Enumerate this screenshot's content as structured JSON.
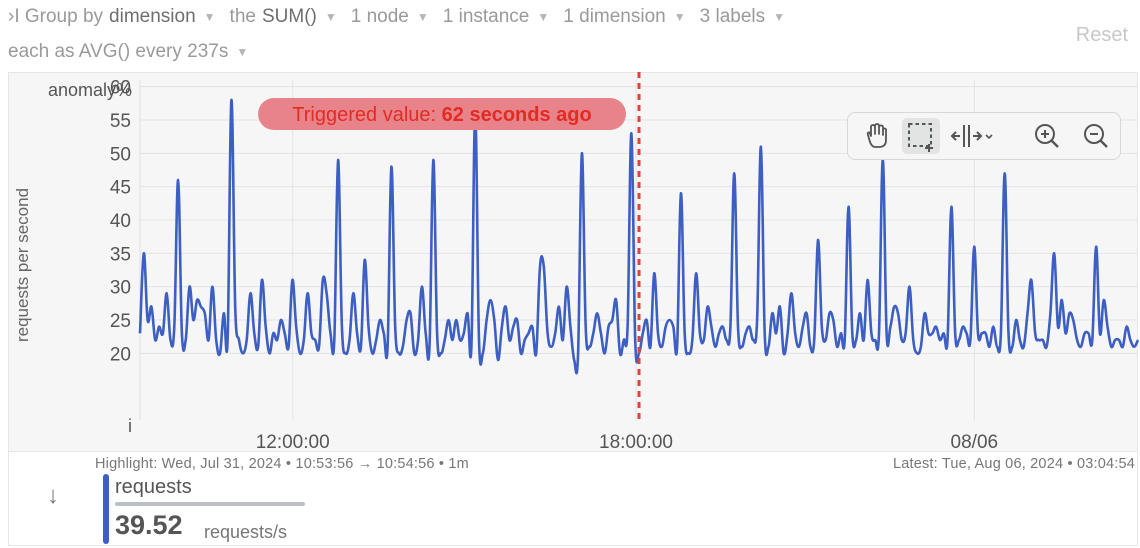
{
  "toolbar": {
    "row1": [
      {
        "label": "›I Group by",
        "highlight": "dimension"
      },
      {
        "label": "the",
        "highlight": "SUM()"
      },
      {
        "label": "1 node",
        "highlight": ""
      },
      {
        "label": "1 instance",
        "highlight": ""
      },
      {
        "label": "1 dimension",
        "highlight": ""
      },
      {
        "label": "3 labels",
        "highlight": ""
      }
    ],
    "row2": [
      {
        "label": "each as AVG() every 237s",
        "highlight": ""
      }
    ],
    "reset_label": "Reset"
  },
  "tools": {
    "items": [
      "pan-icon",
      "select-icon",
      "fit-icon",
      "zoom-in-icon",
      "zoom-out-icon"
    ],
    "active": "select-icon"
  },
  "chart_data": {
    "type": "line",
    "ylabel": "requests per second",
    "y2label": "anomaly%",
    "y_ticks": [
      20,
      25,
      30,
      35,
      40,
      45,
      50,
      55,
      60
    ],
    "ylim": [
      10,
      61
    ],
    "xlim": [
      0,
      1
    ],
    "x_ticks": [
      {
        "label": "12:00:00",
        "pos": 0.153
      },
      {
        "label": "18:00:00",
        "pos": 0.497
      },
      {
        "label": "08/06",
        "pos": 0.836
      }
    ],
    "anomaly_tick": "i",
    "marker": {
      "pos": 0.5,
      "label_prefix": "Triggered value:",
      "label_value": "62 seconds ago"
    },
    "series": [
      {
        "name": "requests",
        "color": "#3d5fc4",
        "values": [
          23,
          35,
          25,
          27,
          22,
          24,
          23,
          29,
          22,
          24,
          46,
          23,
          22,
          30,
          25,
          28,
          27,
          26,
          22,
          30,
          22,
          20,
          26,
          22,
          58,
          27,
          22,
          20,
          22,
          29,
          23,
          21,
          31,
          24,
          20,
          23,
          22,
          25,
          23,
          21,
          31,
          24,
          20,
          22,
          29,
          23,
          22,
          21,
          31,
          29,
          23,
          22,
          49,
          24,
          20,
          22,
          29,
          23,
          21,
          34,
          24,
          20,
          22,
          25,
          23,
          21,
          48,
          24,
          20,
          21,
          25,
          26,
          20,
          22,
          30,
          23,
          21,
          49,
          23,
          20,
          22,
          25,
          22,
          25,
          22,
          23,
          26,
          21,
          56,
          22,
          20,
          25,
          28,
          25,
          19,
          24,
          27,
          22,
          24,
          25,
          20,
          22,
          23,
          24,
          20,
          33,
          33,
          23,
          21,
          23,
          27,
          22,
          30,
          24,
          19,
          20,
          50,
          24,
          21,
          23,
          26,
          23,
          20,
          24,
          25,
          28,
          20,
          22,
          24,
          53,
          22,
          20,
          23,
          25,
          21,
          32,
          23,
          21,
          24,
          25,
          24,
          21,
          44,
          23,
          20,
          22,
          32,
          23,
          22,
          27,
          24,
          21,
          23,
          24,
          22,
          24,
          47,
          24,
          21,
          23,
          24,
          22,
          25,
          51,
          23,
          21,
          26,
          23,
          27,
          20,
          23,
          29,
          23,
          21,
          24,
          26,
          21,
          22,
          37,
          24,
          22,
          26,
          25,
          21,
          23,
          22,
          42,
          23,
          22,
          26,
          22,
          31,
          23,
          22,
          23,
          49,
          23,
          24,
          27,
          26,
          22,
          23,
          30,
          22,
          20,
          21,
          26,
          23,
          23,
          24,
          22,
          23,
          22,
          42,
          23,
          22,
          24,
          23,
          22,
          36,
          23,
          23,
          23,
          21,
          24,
          21,
          23,
          47,
          23,
          21,
          25,
          22,
          21,
          26,
          31,
          23,
          22,
          22,
          21,
          26,
          35,
          24,
          28,
          23,
          26,
          25,
          22,
          21,
          23,
          23,
          22,
          36,
          23,
          28,
          24,
          21,
          22,
          22,
          21,
          24,
          22,
          21,
          22
        ]
      }
    ]
  },
  "info": {
    "highlight": "Highlight:  Wed, Jul 31, 2024  •  10:53:56 → 10:54:56  •  1m",
    "latest": "Latest:  Tue, Aug 06, 2024  •  03:04:54"
  },
  "legend": {
    "arrow": "↓",
    "name": "requests",
    "value": "39.52",
    "unit": "requests/s",
    "color": "#3d5fc4"
  }
}
